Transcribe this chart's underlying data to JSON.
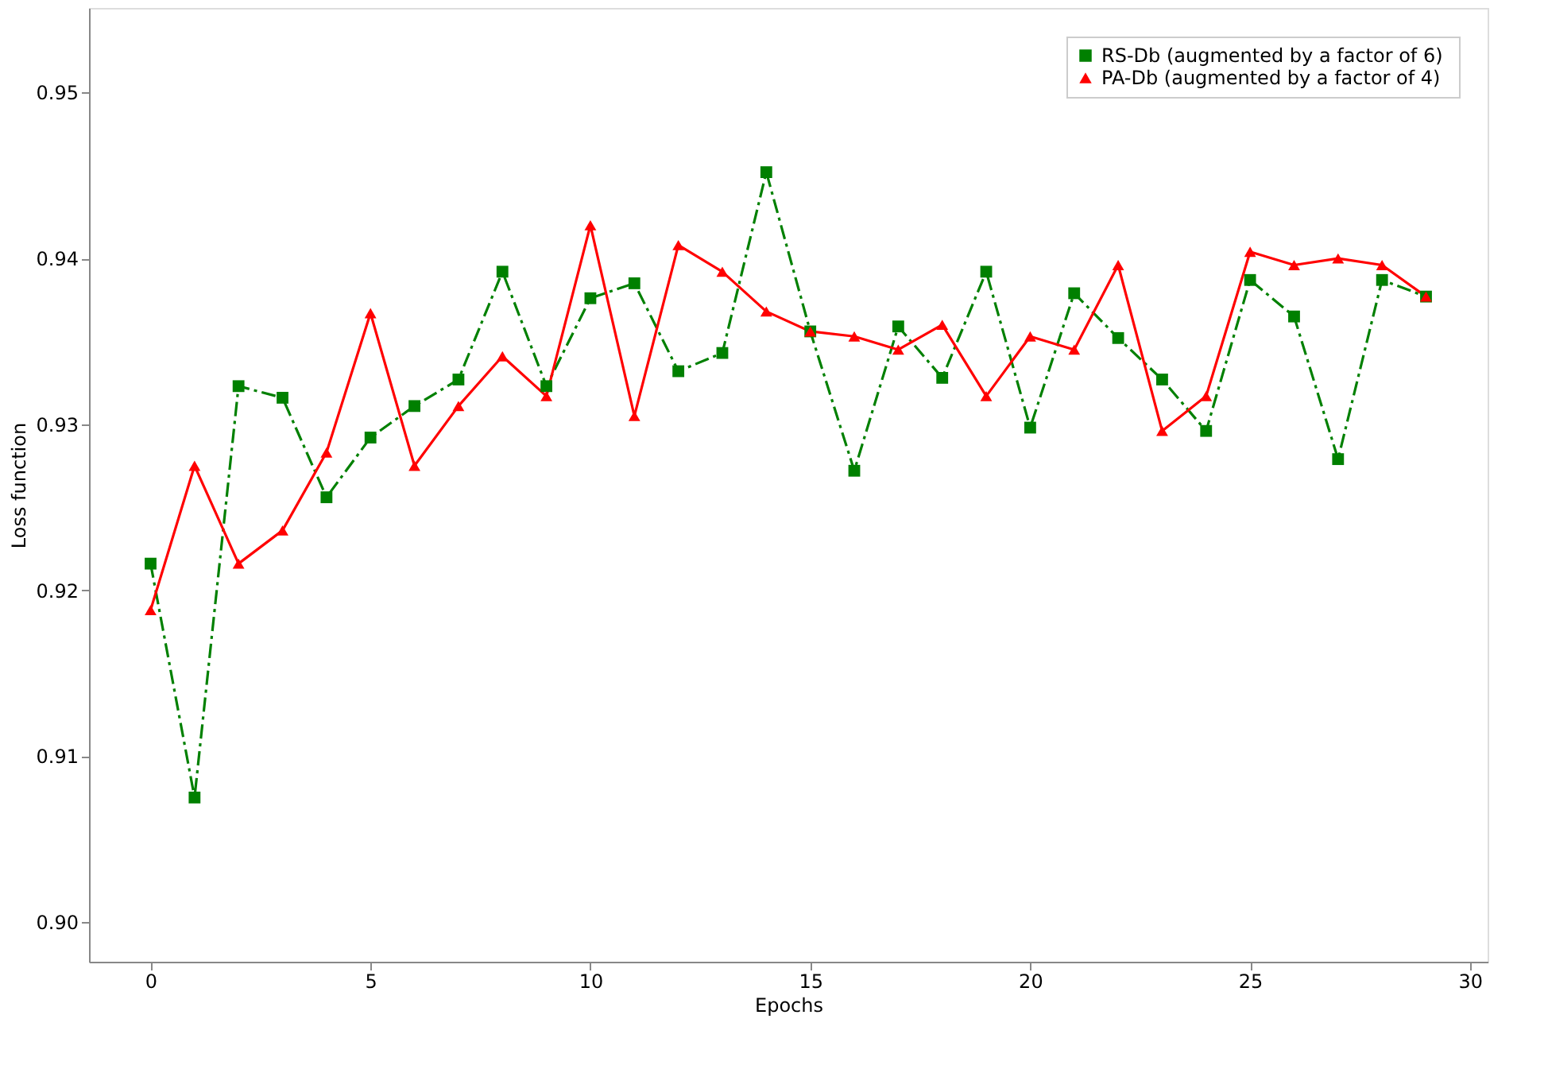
{
  "chart_data": {
    "type": "line",
    "xlabel": "Epochs",
    "ylabel": "Loss function",
    "x": [
      0,
      1,
      2,
      3,
      4,
      5,
      6,
      7,
      8,
      9,
      10,
      11,
      12,
      13,
      14,
      15,
      16,
      17,
      18,
      19,
      20,
      21,
      22,
      23,
      24,
      25,
      26,
      27,
      28,
      29
    ],
    "series": [
      {
        "name": "RS-Db (augmented by a factor  of 6)",
        "color": "#008000",
        "marker": "square",
        "line_style": "dashed",
        "values": [
          0.9216,
          0.9075,
          0.9323,
          0.9316,
          0.9256,
          0.9292,
          0.9311,
          0.9327,
          0.9392,
          0.9323,
          0.9376,
          0.9385,
          0.9332,
          0.9343,
          0.9452,
          0.9356,
          0.9272,
          0.9359,
          0.9328,
          0.9392,
          0.9298,
          0.9379,
          0.9352,
          0.9327,
          0.9296,
          0.9387,
          0.9365,
          0.9279,
          0.9387,
          0.9377
        ]
      },
      {
        "name": "PA-Db (augmented by a factor  of 4)",
        "color": "#ff0000",
        "marker": "triangle",
        "line_style": "solid",
        "values": [
          0.9188,
          0.9275,
          0.9216,
          0.9236,
          0.9283,
          0.9367,
          0.9275,
          0.9311,
          0.9341,
          0.9317,
          0.942,
          0.9305,
          0.9408,
          0.9392,
          0.9368,
          0.9356,
          0.9353,
          0.9345,
          0.936,
          0.9317,
          0.9353,
          0.9345,
          0.9396,
          0.9296,
          0.9317,
          0.9404,
          0.9396,
          0.94,
          0.9396,
          0.9377
        ]
      }
    ],
    "xlim": [
      -1.4,
      30.4
    ],
    "ylim": [
      0.8976,
      0.9551
    ],
    "xticks": [
      0,
      5,
      10,
      15,
      20,
      25,
      30
    ],
    "yticks": [
      {
        "value": 0.9,
        "label": "0.90"
      },
      {
        "value": 0.91,
        "label": "0.91"
      },
      {
        "value": 0.92,
        "label": "0.92"
      },
      {
        "value": 0.93,
        "label": "0.93"
      },
      {
        "value": 0.94,
        "label": "0.94"
      },
      {
        "value": 0.95,
        "label": "0.95"
      }
    ],
    "grid": false,
    "legend": "top right"
  }
}
